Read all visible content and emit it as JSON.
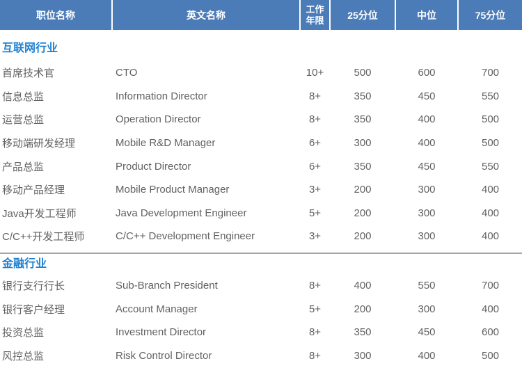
{
  "header": {
    "position": "职位名称",
    "english": "英文名称",
    "years_line1": "工作",
    "years_line2": "年限",
    "p25": "25分位",
    "p50": "中位",
    "p75": "75分位"
  },
  "sections": [
    {
      "title": "互联网行业",
      "rows": [
        {
          "name": "首席技术官",
          "en": "CTO",
          "years": "10+",
          "p25": "500",
          "p50": "600",
          "p75": "700"
        },
        {
          "name": "信息总监",
          "en": "Information Director",
          "years": "8+",
          "p25": "350",
          "p50": "450",
          "p75": "550"
        },
        {
          "name": "运营总监",
          "en": "Operation Director",
          "years": "8+",
          "p25": "350",
          "p50": "400",
          "p75": "500"
        },
        {
          "name": "移动端研发经理",
          "en": "Mobile R&D Manager",
          "years": "6+",
          "p25": "300",
          "p50": "400",
          "p75": "500"
        },
        {
          "name": "产品总监",
          "en": "Product Director",
          "years": "6+",
          "p25": "350",
          "p50": "450",
          "p75": "550"
        },
        {
          "name": "移动产品经理",
          "en": "Mobile Product Manager",
          "years": "3+",
          "p25": "200",
          "p50": "300",
          "p75": "400"
        },
        {
          "name": "Java开发工程师",
          "en": "Java Development Engineer",
          "years": "5+",
          "p25": "200",
          "p50": "300",
          "p75": "400"
        },
        {
          "name": "C/C++开发工程师",
          "en": "C/C++ Development Engineer",
          "years": "3+",
          "p25": "200",
          "p50": "300",
          "p75": "400"
        }
      ]
    },
    {
      "title": "金融行业",
      "rows": [
        {
          "name": "银行支行行长",
          "en": "Sub-Branch President",
          "years": "8+",
          "p25": "400",
          "p50": "550",
          "p75": "700"
        },
        {
          "name": "银行客户经理",
          "en": "Account Manager",
          "years": "5+",
          "p25": "200",
          "p50": "300",
          "p75": "400"
        },
        {
          "name": "投资总监",
          "en": "Investment Director",
          "years": "8+",
          "p25": "350",
          "p50": "450",
          "p75": "600"
        },
        {
          "name": "风控总监",
          "en": "Risk Control Director",
          "years": "8+",
          "p25": "300",
          "p50": "400",
          "p75": "500"
        }
      ]
    }
  ],
  "colors": {
    "header_bg": "#4b7cb8",
    "header_text": "#ffffff",
    "section_title": "#1e81d2",
    "body_text": "#616161",
    "divider": "#a6a6a6"
  }
}
